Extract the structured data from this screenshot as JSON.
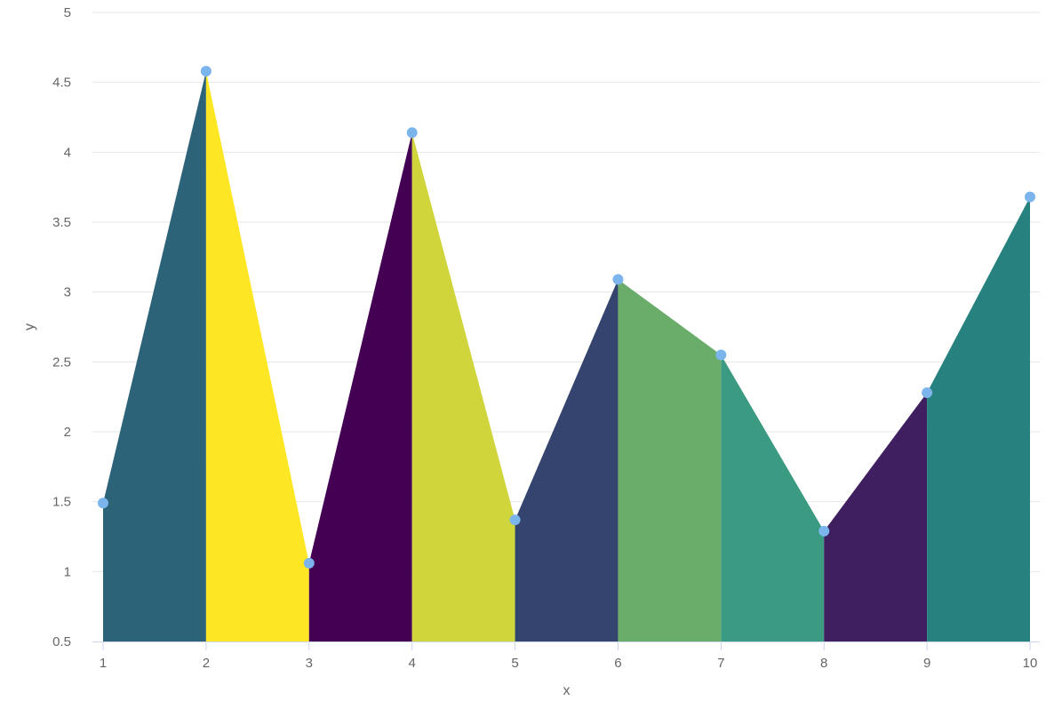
{
  "chart_data": {
    "type": "area",
    "title": "",
    "xlabel": "x",
    "ylabel": "y",
    "xlim": [
      1,
      10
    ],
    "ylim": [
      0.5,
      5
    ],
    "x_ticks": [
      "1",
      "2",
      "3",
      "4",
      "5",
      "6",
      "7",
      "8",
      "9",
      "10"
    ],
    "y_ticks": [
      "0.5",
      "1",
      "1.5",
      "2",
      "2.5",
      "3",
      "3.5",
      "4",
      "4.5",
      "5"
    ],
    "grid": "horizontal",
    "legend": "none",
    "series": [
      {
        "x": [
          1,
          2,
          3,
          4,
          5,
          6,
          7,
          8,
          9,
          10
        ],
        "values": [
          1.49,
          4.58,
          1.06,
          4.14,
          1.37,
          3.09,
          2.55,
          1.29,
          2.28,
          3.68
        ]
      }
    ],
    "segment_colors": [
      "#2c6378",
      "#fde725",
      "#440154",
      "#cfd53b",
      "#35446f",
      "#6aad6b",
      "#3b9a82",
      "#3f1f5f",
      "#26817f"
    ],
    "marker_color": "#7cb5ec"
  }
}
